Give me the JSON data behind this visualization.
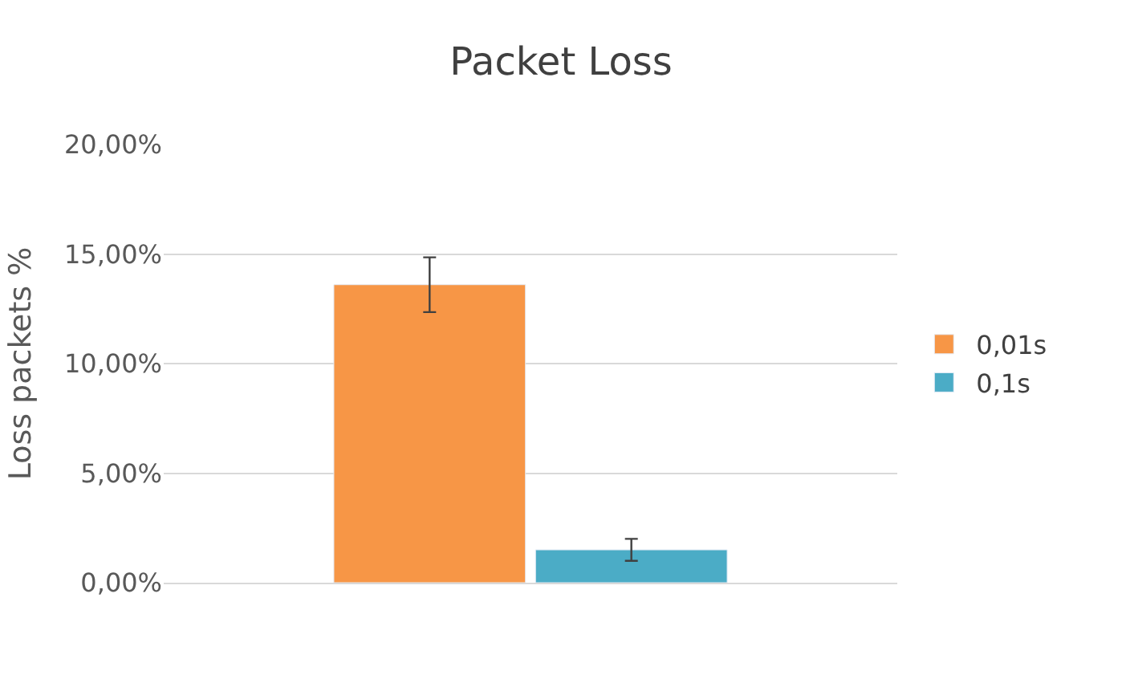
{
  "chart_data": {
    "type": "bar",
    "title": "Packet Loss",
    "ylabel": "Loss packets %",
    "categories": [
      null
    ],
    "series": [
      {
        "name": "0,01s",
        "color": "#f79646",
        "values": [
          13.6
        ],
        "errors": [
          1.25
        ]
      },
      {
        "name": "0,1s",
        "color": "#4bacc6",
        "values": [
          1.5
        ],
        "errors": [
          0.5
        ]
      }
    ],
    "ylim": [
      0,
      20
    ],
    "yticks": [
      {
        "value": 0,
        "label": "0,00%"
      },
      {
        "value": 5,
        "label": "5,00%"
      },
      {
        "value": 10,
        "label": "10,00%"
      },
      {
        "value": 15,
        "label": "15,00%"
      },
      {
        "value": 20,
        "label": "20,00%"
      }
    ],
    "grid": "y",
    "legend": "right",
    "tick_labels": "y"
  }
}
